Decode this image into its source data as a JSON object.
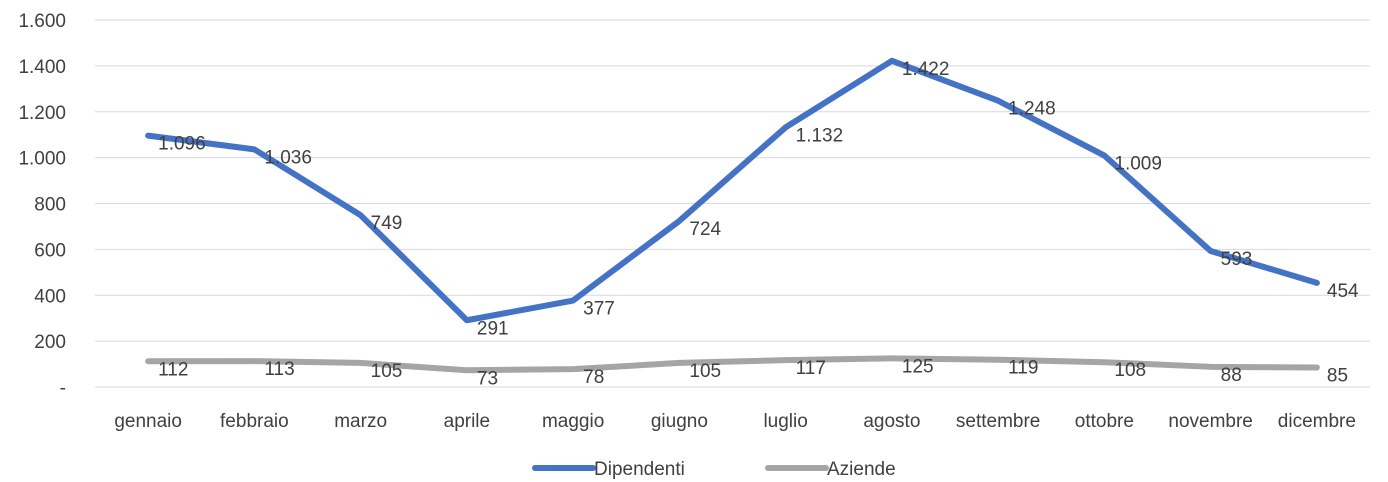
{
  "chart_data": {
    "type": "line",
    "title": "",
    "xlabel": "",
    "ylabel": "",
    "categories": [
      "gennaio",
      "febbraio",
      "marzo",
      "aprile",
      "maggio",
      "giugno",
      "luglio",
      "agosto",
      "settembre",
      "ottobre",
      "novembre",
      "dicembre"
    ],
    "ylim": [
      0,
      1600
    ],
    "yticks": [
      0,
      200,
      400,
      600,
      800,
      1000,
      1200,
      1400,
      1600
    ],
    "ytick_labels": [
      "-",
      "200",
      "400",
      "600",
      "800",
      "1.000",
      "1.200",
      "1.400",
      "1.600"
    ],
    "grid": "horizontal",
    "legend_position": "bottom",
    "series": [
      {
        "name": "Dipendenti",
        "color": "#4472C4",
        "values": [
          1096,
          1036,
          749,
          291,
          377,
          724,
          1132,
          1422,
          1248,
          1009,
          593,
          454
        ],
        "labels": [
          "1.096",
          "1.036",
          "749",
          "291",
          "377",
          "724",
          "1.132",
          "1.422",
          "1.248",
          "1.009",
          "593",
          "454"
        ]
      },
      {
        "name": "Aziende",
        "color": "#A5A5A5",
        "values": [
          112,
          113,
          105,
          73,
          78,
          105,
          117,
          125,
          119,
          108,
          88,
          85
        ],
        "labels": [
          "112",
          "113",
          "105",
          "73",
          "78",
          "105",
          "117",
          "125",
          "119",
          "108",
          "88",
          "85"
        ]
      }
    ]
  }
}
